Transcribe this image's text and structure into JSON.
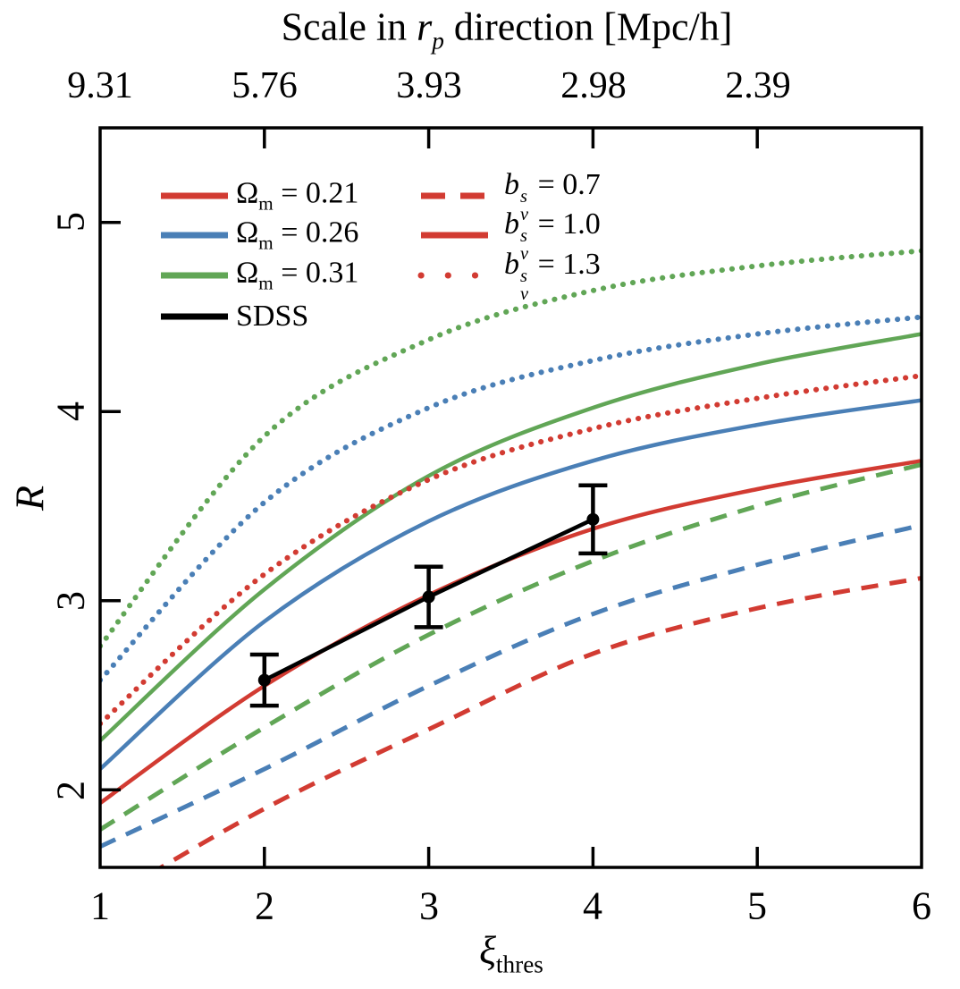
{
  "title": {
    "pre": "Scale in ",
    "var": "r",
    "var_sub": "p",
    "post": " direction [Mpc/h]"
  },
  "axes": {
    "top": {
      "tick_labels": [
        "9.31",
        "5.76",
        "3.93",
        "2.98",
        "2.39"
      ],
      "tick_label_x": [
        1,
        2,
        3,
        4,
        5
      ],
      "tick_marks_x": [
        2,
        3,
        4,
        5
      ]
    },
    "bottom": {
      "label_var": "ξ",
      "label_sub": "thres",
      "tick_labels": [
        "1",
        "2",
        "3",
        "4",
        "5",
        "6"
      ],
      "tick_label_x": [
        1,
        2,
        3,
        4,
        5,
        6
      ],
      "tick_marks_x": [
        2,
        3,
        4,
        5
      ]
    },
    "left": {
      "label": "R",
      "tick_labels": [
        "2",
        "3",
        "4",
        "5"
      ],
      "tick_label_y": [
        2,
        3,
        4,
        5
      ],
      "tick_marks_y": [
        2,
        3,
        4,
        5
      ]
    }
  },
  "colors": {
    "red": "#d23b32",
    "blue": "#4a7fb6",
    "green": "#61a656",
    "black": "#000000"
  },
  "legend": {
    "col1": [
      {
        "pre": "Ω",
        "sub": "m",
        "post": " = 0.21",
        "color_key": "red",
        "style": "solid"
      },
      {
        "pre": "Ω",
        "sub": "m",
        "post": " = 0.26",
        "color_key": "blue",
        "style": "solid"
      },
      {
        "pre": "Ω",
        "sub": "m",
        "post": " = 0.31",
        "color_key": "green",
        "style": "solid"
      },
      {
        "pre": "SDSS",
        "sub": "",
        "post": "",
        "color_key": "black",
        "style": "solid"
      }
    ],
    "col2": [
      {
        "var": "b",
        "sup": "s",
        "sub": "v",
        "post": " = 0.7",
        "color_key": "red",
        "style": "dashed"
      },
      {
        "var": "b",
        "sup": "s",
        "sub": "v",
        "post": " = 1.0",
        "color_key": "red",
        "style": "solid"
      },
      {
        "var": "b",
        "sup": "s",
        "sub": "v",
        "post": " = 1.3",
        "color_key": "red",
        "style": "dotted"
      }
    ]
  },
  "chart_data": {
    "type": "line",
    "xlabel": "xi_thres",
    "ylabel": "R",
    "xlim": [
      1,
      6
    ],
    "ylim": [
      1.59,
      5.5
    ],
    "x": [
      1,
      2,
      3,
      4,
      5,
      6
    ],
    "series": [
      {
        "name": "Omega_m=0.21 b_v^s=1.0",
        "color_key": "red",
        "style": "solid",
        "values": [
          1.93,
          2.55,
          3.03,
          3.38,
          3.59,
          3.74
        ]
      },
      {
        "name": "Omega_m=0.26 b_v^s=1.0",
        "color_key": "blue",
        "style": "solid",
        "values": [
          2.11,
          2.89,
          3.42,
          3.74,
          3.93,
          4.06
        ]
      },
      {
        "name": "Omega_m=0.31 b_v^s=1.0",
        "color_key": "green",
        "style": "solid",
        "values": [
          2.26,
          3.06,
          3.66,
          4.02,
          4.25,
          4.41
        ]
      },
      {
        "name": "Omega_m=0.21 b_v^s=0.7",
        "color_key": "red",
        "style": "dashed",
        "values": [
          1.4,
          1.9,
          2.32,
          2.72,
          2.96,
          3.12
        ]
      },
      {
        "name": "Omega_m=0.26 b_v^s=0.7",
        "color_key": "blue",
        "style": "dashed",
        "values": [
          1.7,
          2.11,
          2.55,
          2.93,
          3.19,
          3.4
        ]
      },
      {
        "name": "Omega_m=0.31 b_v^s=0.7",
        "color_key": "green",
        "style": "dashed",
        "values": [
          1.79,
          2.33,
          2.82,
          3.21,
          3.5,
          3.72
        ]
      },
      {
        "name": "Omega_m=0.21 b_v^s=1.3",
        "color_key": "red",
        "style": "dotted",
        "values": [
          2.35,
          3.14,
          3.64,
          3.91,
          4.07,
          4.19
        ]
      },
      {
        "name": "Omega_m=0.26 b_v^s=1.3",
        "color_key": "blue",
        "style": "dotted",
        "values": [
          2.58,
          3.52,
          4.02,
          4.27,
          4.41,
          4.5
        ]
      },
      {
        "name": "Omega_m=0.31 b_v^s=1.3",
        "color_key": "green",
        "style": "dotted",
        "values": [
          2.76,
          3.87,
          4.38,
          4.64,
          4.77,
          4.85
        ]
      }
    ],
    "sdss": {
      "name": "SDSS",
      "x": [
        2,
        3,
        4
      ],
      "y": [
        2.58,
        3.02,
        3.43
      ],
      "yerr": [
        0.135,
        0.16,
        0.18
      ],
      "color_key": "black"
    },
    "legend_position": "upper-left",
    "grid": false
  }
}
